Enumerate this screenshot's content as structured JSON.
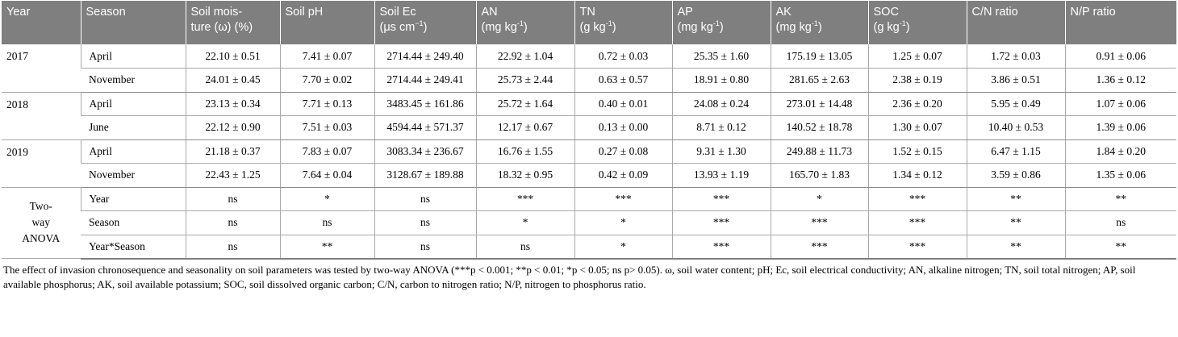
{
  "headers": [
    {
      "line1": "Year",
      "line2": ""
    },
    {
      "line1": "Season",
      "line2": ""
    },
    {
      "line1": "Soil mois-",
      "line2": "ture (ω) (%)"
    },
    {
      "line1": "Soil pH",
      "line2": ""
    },
    {
      "line1": "Soil Ec",
      "line2": "(μs cm",
      "sup": "−1",
      "after": ")"
    },
    {
      "line1": "AN",
      "line2": "(mg kg",
      "sup": "-1",
      "after": ")"
    },
    {
      "line1": "TN",
      "line2": "(g kg",
      "sup": "-1",
      "after": ")"
    },
    {
      "line1": "AP",
      "line2": "(mg kg",
      "sup": "-1",
      "after": ")"
    },
    {
      "line1": "AK",
      "line2": "(mg kg",
      "sup": "-1",
      "after": ")"
    },
    {
      "line1": "SOC",
      "line2": "(g kg",
      "sup": "-1",
      "after": ")"
    },
    {
      "line1": "C/N ratio",
      "line2": ""
    },
    {
      "line1": "N/P ratio",
      "line2": ""
    }
  ],
  "years": [
    {
      "year": "2017",
      "rows": [
        {
          "season": "April",
          "values": [
            "22.10 ± 0.51",
            "7.41 ± 0.07",
            "2714.44 ± 249.40",
            "22.92 ± 1.04",
            "0.72 ± 0.03",
            "25.35 ± 1.60",
            "175.19 ± 13.05",
            "1.25 ± 0.07",
            "1.72 ± 0.03",
            "0.91 ± 0.06"
          ]
        },
        {
          "season": "November",
          "values": [
            "24.01 ± 0.45",
            "7.70 ± 0.02",
            "2714.44 ± 249.41",
            "25.73 ± 2.44",
            "0.63 ± 0.57",
            "18.91 ± 0.80",
            "281.65 ± 2.63",
            "2.38 ± 0.19",
            "3.86 ± 0.51",
            "1.36 ± 0.12"
          ]
        }
      ]
    },
    {
      "year": "2018",
      "rows": [
        {
          "season": "April",
          "values": [
            "23.13 ± 0.34",
            "7.71 ± 0.13",
            "3483.45 ± 161.86",
            "25.72 ± 1.64",
            "0.40 ± 0.01",
            "24.08 ± 0.24",
            "273.01 ± 14.48",
            "2.36 ± 0.20",
            "5.95 ± 0.49",
            "1.07 ± 0.06"
          ]
        },
        {
          "season": "June",
          "values": [
            "22.12 ± 0.90",
            "7.51 ± 0.03",
            "4594.44 ± 571.37",
            "12.17 ± 0.67",
            "0.13 ± 0.00",
            "8.71 ± 0.12",
            "140.52 ± 18.78",
            "1.30 ± 0.07",
            "10.40 ± 0.53",
            "1.39 ± 0.06"
          ]
        }
      ]
    },
    {
      "year": "2019",
      "rows": [
        {
          "season": "April",
          "values": [
            "21.18 ± 0.37",
            "7.83 ± 0.07",
            "3083.34 ± 236.67",
            "16.76 ± 1.55",
            "0.27 ± 0.08",
            "9.31 ± 1.30",
            "249.88 ± 11.73",
            "1.52 ± 0.15",
            "6.47 ± 1.15",
            "1.84 ± 0.20"
          ]
        },
        {
          "season": "November",
          "values": [
            "22.43 ± 1.25",
            "7.64 ± 0.04",
            "3128.67 ± 189.88",
            "18.32 ± 0.95",
            "0.42 ± 0.09",
            "13.93 ± 1.19",
            "165.70 ± 1.83",
            "1.34 ± 0.12",
            "3.59 ± 0.86",
            "1.35 ± 0.06"
          ]
        }
      ]
    }
  ],
  "anova": {
    "label_lines": [
      "Two-",
      "way",
      "ANOVA"
    ],
    "rows": [
      {
        "factor": "Year",
        "values": [
          "ns",
          "*",
          "ns",
          "***",
          "***",
          "***",
          "*",
          "***",
          "**",
          "**"
        ]
      },
      {
        "factor": "Season",
        "values": [
          "ns",
          "ns",
          "ns",
          "*",
          "*",
          "***",
          "***",
          "***",
          "**",
          "ns"
        ]
      },
      {
        "factor": "Year*Season",
        "values": [
          "ns",
          "**",
          "ns",
          "ns",
          "*",
          "***",
          "***",
          "***",
          "**",
          "**"
        ]
      }
    ]
  },
  "footnote": {
    "line1": "The effect of invasion chronosequence and seasonality on soil parameters was tested by two-way ANOVA (***p < 0.001; **p < 0.01; *p < 0.05; ns p> 0.05). ω, soil water content; pH; Ec, soil electrical conductivity; AN, alkaline nitrogen; TN, soil total nitrogen; AP, soil",
    "line2": "available phosphorus; AK, soil available potassium; SOC, soil dissolved organic carbon; C/N, carbon to nitrogen ratio; N/P, nitrogen to phosphorus ratio."
  }
}
